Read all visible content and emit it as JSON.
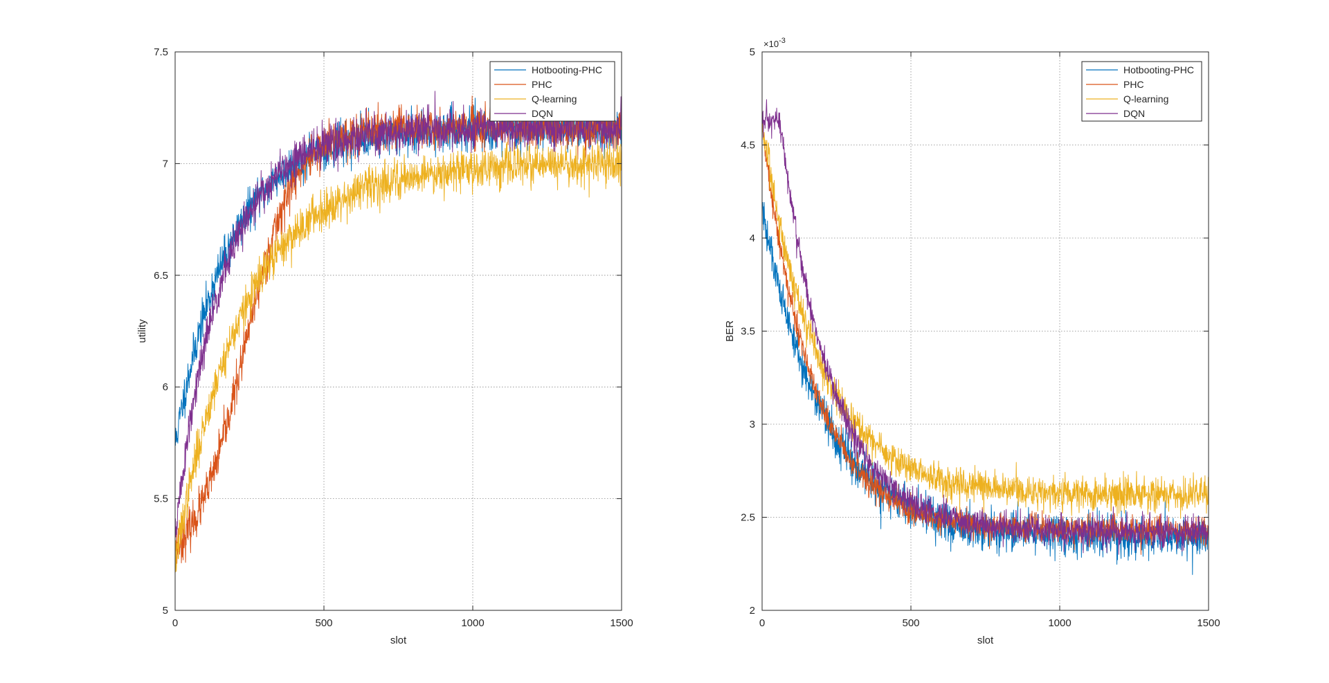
{
  "figure": {
    "background": "#ffffff"
  },
  "chart_data": [
    {
      "type": "line",
      "title": "",
      "xlabel": "slot",
      "ylabel": "utility",
      "xlim": [
        0,
        1500
      ],
      "ylim": [
        5,
        7.5
      ],
      "xticks": [
        0,
        500,
        1000,
        1500
      ],
      "yticks": [
        5,
        5.5,
        6,
        6.5,
        7,
        7.5
      ],
      "xtick_labels": [
        "0",
        "500",
        "1000",
        "1500"
      ],
      "ytick_labels": [
        "5",
        "5.5",
        "6",
        "6.5",
        "7",
        "7.5"
      ],
      "exponent_label": "",
      "grid": true,
      "legend_position": "top-right",
      "series": [
        {
          "name": "Hotbooting-PHC",
          "color": "#0072BD",
          "start": 5.75,
          "end": 7.16,
          "tau": 185,
          "noise": 0.05,
          "seed": 11
        },
        {
          "name": "PHC",
          "color": "#D95319",
          "start": 5.28,
          "end": 7.16,
          "tau": 200,
          "noise": 0.05,
          "seed": 23,
          "shape": "sigmoid",
          "mid": 230,
          "width": 85
        },
        {
          "name": "Q-learning",
          "color": "#EDB120",
          "start": 5.22,
          "end": 7.0,
          "tau": 230,
          "noise": 0.05,
          "seed": 37
        },
        {
          "name": "DQN",
          "color": "#7E2F8E",
          "start": 5.35,
          "end": 7.16,
          "tau": 160,
          "noise": 0.05,
          "seed": 51
        }
      ]
    },
    {
      "type": "line",
      "title": "",
      "xlabel": "slot",
      "ylabel": "BER",
      "xlim": [
        0,
        1500
      ],
      "ylim": [
        2,
        5
      ],
      "xticks": [
        0,
        500,
        1000,
        1500
      ],
      "yticks": [
        2,
        2.5,
        3,
        3.5,
        4,
        4.5,
        5
      ],
      "xtick_labels": [
        "0",
        "500",
        "1000",
        "1500"
      ],
      "ytick_labels": [
        "2",
        "2.5",
        "3",
        "3.5",
        "4",
        "4.5",
        "5"
      ],
      "exponent_label": "×10",
      "exponent_power": "-3",
      "grid": true,
      "legend_position": "top-right",
      "series": [
        {
          "name": "Hotbooting-PHC",
          "color": "#0072BD",
          "start": 4.15,
          "end": 2.39,
          "tau": 210,
          "noise": 0.06,
          "seed": 61
        },
        {
          "name": "PHC",
          "color": "#D95319",
          "start": 4.6,
          "end": 2.43,
          "tau": 170,
          "noise": 0.04,
          "seed": 73
        },
        {
          "name": "Q-learning",
          "color": "#EDB120",
          "start": 4.6,
          "end": 2.62,
          "tau": 190,
          "noise": 0.05,
          "seed": 83
        },
        {
          "name": "DQN",
          "color": "#7E2F8E",
          "start": 4.62,
          "end": 2.42,
          "tau": 170,
          "noise": 0.045,
          "seed": 97,
          "shape": "hold",
          "hold": 60
        }
      ]
    }
  ]
}
